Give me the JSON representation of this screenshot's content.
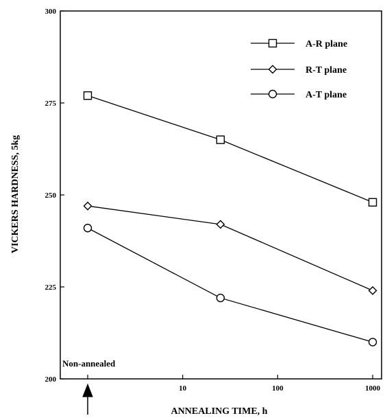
{
  "chart_data": {
    "type": "line",
    "title": "",
    "xlabel": "ANNEALING TIME, h",
    "ylabel": "VICKERS HARDNESS, 5kg",
    "x_scale": "log",
    "x": [
      1,
      25,
      1000
    ],
    "xticks": [
      {
        "value": 1,
        "label": ""
      },
      {
        "value": 10,
        "label": "10"
      },
      {
        "value": 100,
        "label": "100"
      },
      {
        "value": 1000,
        "label": "1000"
      }
    ],
    "ylim": [
      200,
      300
    ],
    "yticks": [
      200,
      225,
      250,
      275,
      300
    ],
    "grid": false,
    "legend_position": "top-right",
    "series": [
      {
        "name": "A-R plane",
        "marker": "square",
        "values": [
          277,
          265,
          248
        ]
      },
      {
        "name": "R-T plane",
        "marker": "diamond",
        "values": [
          247,
          242,
          224
        ]
      },
      {
        "name": "A-T plane",
        "marker": "circle",
        "values": [
          241,
          222,
          210
        ]
      }
    ],
    "annotations": [
      {
        "text": "Non-annealed",
        "arrow_at_x": 1
      }
    ]
  }
}
